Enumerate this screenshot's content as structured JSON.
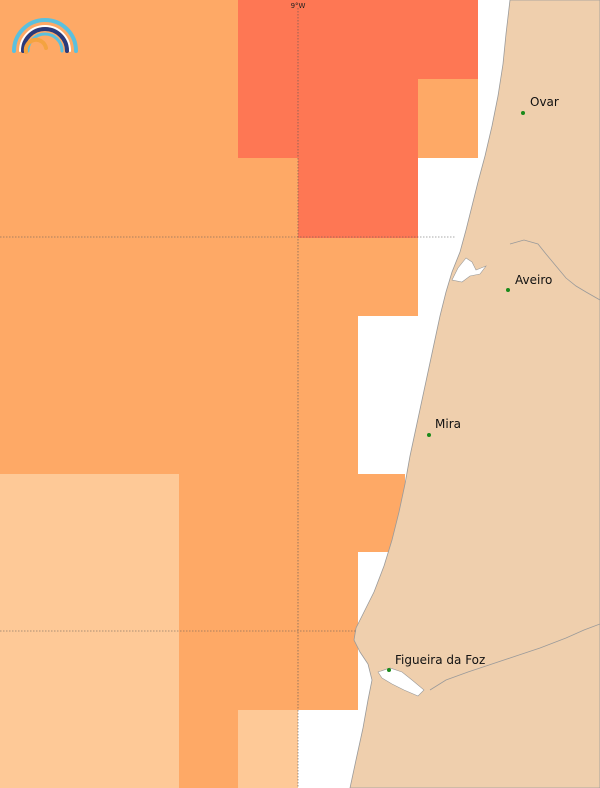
{
  "map": {
    "colors": {
      "sea": "#ffffff",
      "land": "#efcfad",
      "coast": "#9a9a9a",
      "level_high": "#fe7754",
      "level_mid": "#fea966",
      "level_low": "#fec997",
      "grid": "#555555",
      "city_dot": "#1a8a1a"
    },
    "gridline_label": "9°W",
    "logo": {
      "name": "rainbow-arcs-logo",
      "colors": [
        "#5bc0de",
        "#2a3a7a",
        "#f4a340"
      ]
    },
    "cities": [
      {
        "name": "Ovar"
      },
      {
        "name": "Aveiro"
      },
      {
        "name": "Mira"
      },
      {
        "name": "Figueira da Foz"
      }
    ]
  }
}
